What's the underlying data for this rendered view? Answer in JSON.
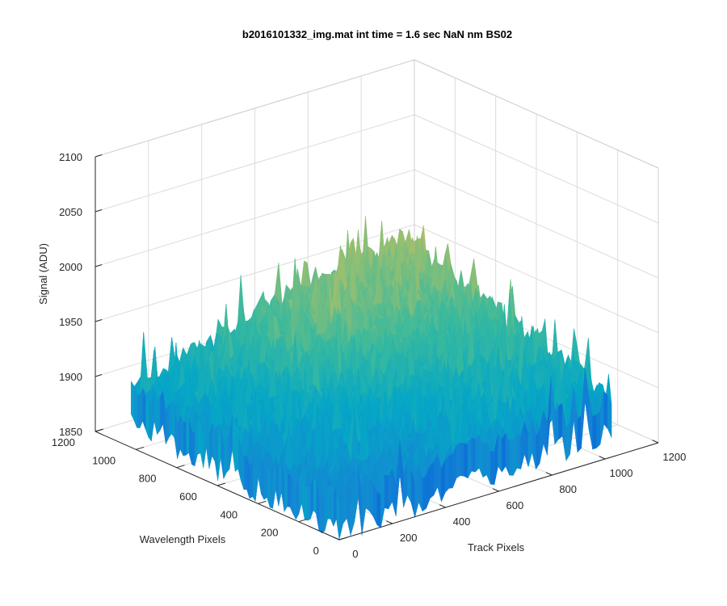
{
  "chart_data": {
    "type": "surface",
    "title": "b2016101332_img.mat int time = 1.6 sec  NaN nm BS02",
    "xlabel": "Track Pixels",
    "ylabel": "Wavelength Pixels",
    "zlabel": "Signal (ADU)",
    "xlim": [
      0,
      1200
    ],
    "ylim": [
      0,
      1200
    ],
    "zlim": [
      1850,
      2100
    ],
    "x_ticks": [
      "0",
      "200",
      "400",
      "600",
      "800",
      "1000",
      "1200"
    ],
    "y_ticks": [
      "0",
      "200",
      "400",
      "600",
      "800",
      "1000",
      "1200"
    ],
    "z_ticks": [
      "1850",
      "1900",
      "1950",
      "2000",
      "2050",
      "2100"
    ],
    "grid": true,
    "colormap": "parula",
    "surface_extent": {
      "x": [
        0,
        1024
      ],
      "y": [
        0,
        1024
      ]
    },
    "approx_levels": {
      "mean": 1935,
      "corner_front": 1885,
      "corner_left": 1905,
      "corner_right": 1905,
      "corner_back": 1965,
      "noise_amplitude": 25
    },
    "colors": {
      "axis": "#262626",
      "grid": "#dcdcdc",
      "surface_low": "#0d6fd6",
      "surface_high": "#e0cf3a"
    }
  }
}
